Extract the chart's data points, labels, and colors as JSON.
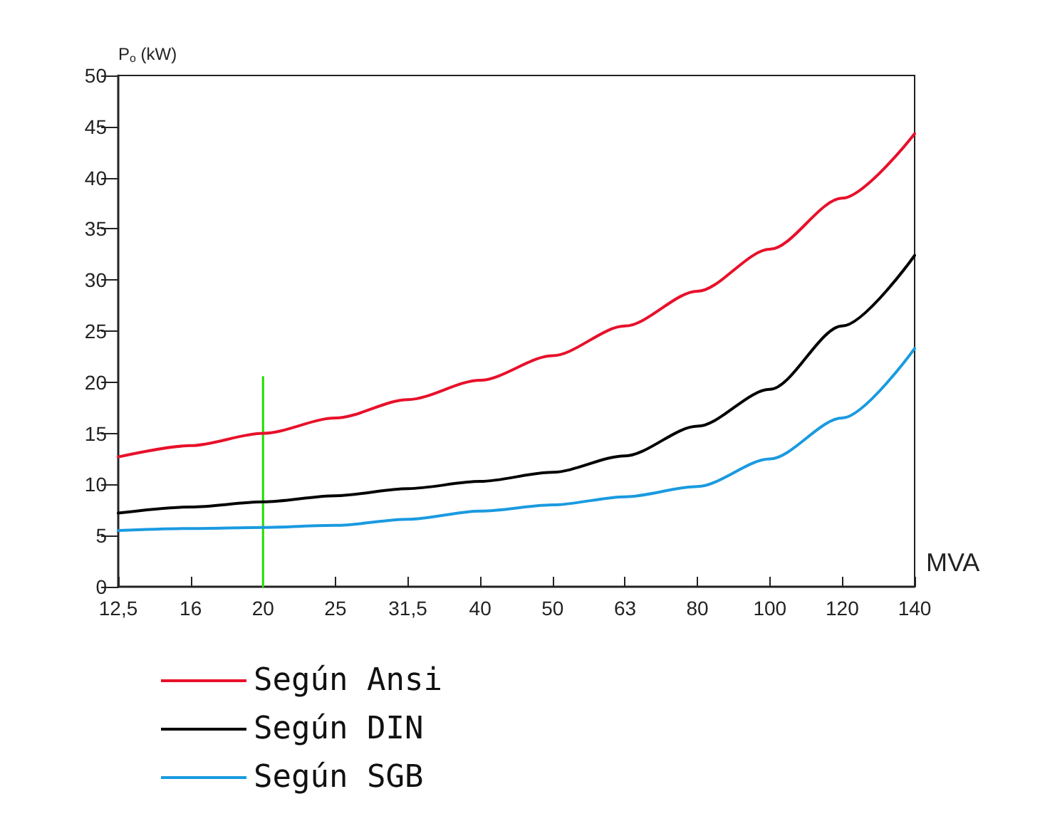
{
  "chart_data": {
    "type": "line",
    "xlabel": "MVA",
    "ylabel": "P$_{o}$ (kW)",
    "categories": [
      "12,5",
      "16",
      "20",
      "25",
      "31,5",
      "40",
      "50",
      "63",
      "80",
      "100",
      "120",
      "140"
    ],
    "series": [
      {
        "name": "Según Ansi",
        "color": "#e8102a",
        "values": [
          12.7,
          13.8,
          15,
          16.5,
          18.3,
          20.2,
          22.6,
          25.5,
          28.9,
          33,
          38,
          44.3
        ]
      },
      {
        "name": "Según DIN",
        "color": "#000000",
        "values": [
          7.2,
          7.8,
          8.3,
          8.9,
          9.6,
          10.3,
          11.2,
          12.8,
          15.7,
          19.3,
          25.5,
          32.4
        ]
      },
      {
        "name": "Según SGB",
        "color": "#1a9ae0",
        "values": [
          5.5,
          5.7,
          5.8,
          6.0,
          6.6,
          7.4,
          8.0,
          8.8,
          9.8,
          12.5,
          16.5,
          23.3
        ]
      },
      {
        "color": "#22dd00",
        "x": [
          "20",
          "20"
        ],
        "values": [
          0,
          20.5
        ]
      }
    ],
    "ylim": [
      0,
      50
    ],
    "yticks": [
      0,
      5,
      10,
      15,
      20,
      25,
      30,
      35,
      40,
      45,
      50
    ],
    "grid": false,
    "legend": "bottom left",
    "marker": "none",
    "line_style": "solid"
  }
}
